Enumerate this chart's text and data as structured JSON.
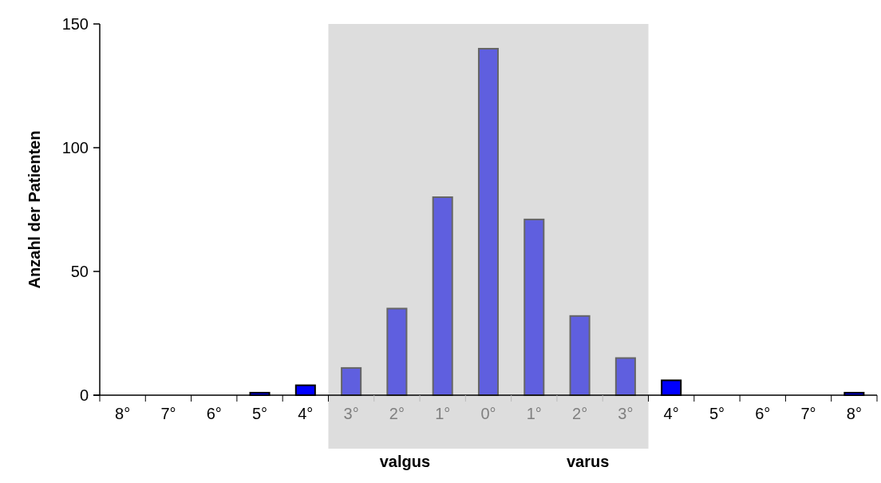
{
  "chart_data": {
    "type": "bar",
    "ylabel": "Anzahl der Patienten",
    "categories": [
      "8°",
      "7°",
      "6°",
      "5°",
      "4°",
      "3°",
      "2°",
      "1°",
      "0°",
      "1°",
      "2°",
      "3°",
      "4°",
      "5°",
      "6°",
      "7°",
      "8°"
    ],
    "values": [
      0,
      0,
      0,
      1,
      4,
      11,
      35,
      80,
      140,
      71,
      32,
      15,
      6,
      0,
      0,
      0,
      1
    ],
    "colors": [
      "#0000ff",
      "#0000ff",
      "#0000ff",
      "#0000ff",
      "#0000ff",
      "#5f5fdf",
      "#5f5fdf",
      "#5f5fdf",
      "#5f5fdf",
      "#5f5fdf",
      "#5f5fdf",
      "#5f5fdf",
      "#0000ff",
      "#0000ff",
      "#0000ff",
      "#0000ff",
      "#0000ff"
    ],
    "ylim": [
      0,
      150
    ],
    "yticks": [
      0,
      50,
      100,
      150
    ],
    "grid": false,
    "annotations": [
      "valgus",
      "varus"
    ]
  }
}
